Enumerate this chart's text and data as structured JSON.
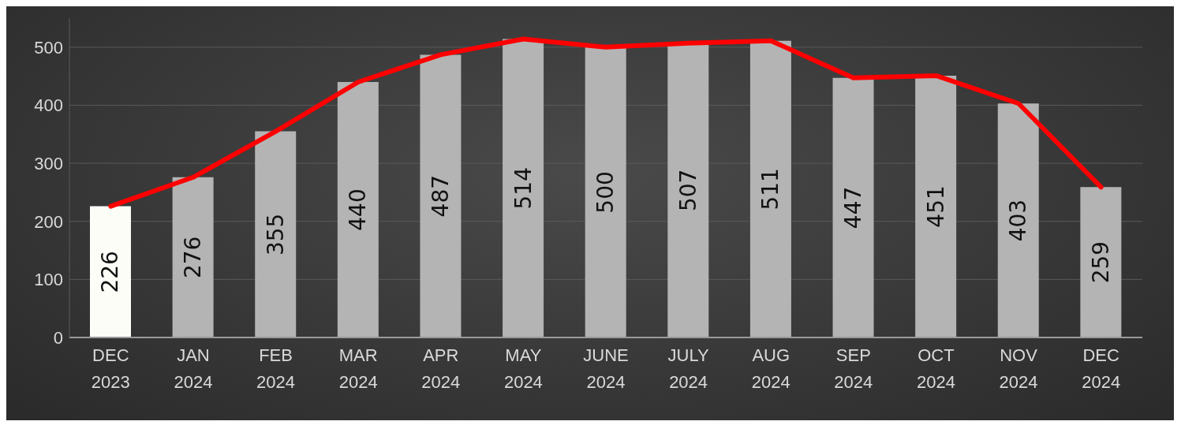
{
  "chart_data": {
    "type": "bar",
    "categories": [
      "DEC 2023",
      "JAN 2024",
      "FEB 2024",
      "MAR 2024",
      "APR 2024",
      "MAY 2024",
      "JUNE 2024",
      "JULY 2024",
      "AUG 2024",
      "SEP 2024",
      "OCT 2024",
      "NOV 2024",
      "DEC 2024"
    ],
    "series": [
      {
        "colors": [
          "#fdfdf8",
          "#b4b4b4",
          "#b4b4b4",
          "#b4b4b4",
          "#b4b4b4",
          "#b4b4b4",
          "#b4b4b4",
          "#b4b4b4",
          "#b4b4b4",
          "#b4b4b4",
          "#b4b4b4",
          "#b4b4b4",
          "#b4b4b4"
        ],
        "values": [
          226,
          276,
          355,
          440,
          487,
          514,
          500,
          507,
          511,
          447,
          451,
          403,
          259
        ],
        "value_labels": [
          "226",
          "276",
          "355",
          "440",
          "487",
          "514",
          "500",
          "507",
          "511",
          "447",
          "451",
          "403",
          "259"
        ]
      },
      {
        "type": "line",
        "color": "#ff0000",
        "values": [
          226,
          276,
          355,
          440,
          487,
          514,
          500,
          507,
          511,
          447,
          451,
          403,
          259
        ]
      }
    ],
    "ylim": [
      0,
      550
    ],
    "yticks": [
      0,
      100,
      200,
      300,
      400,
      500
    ],
    "grid": "y",
    "legend": false,
    "marker": "none"
  }
}
